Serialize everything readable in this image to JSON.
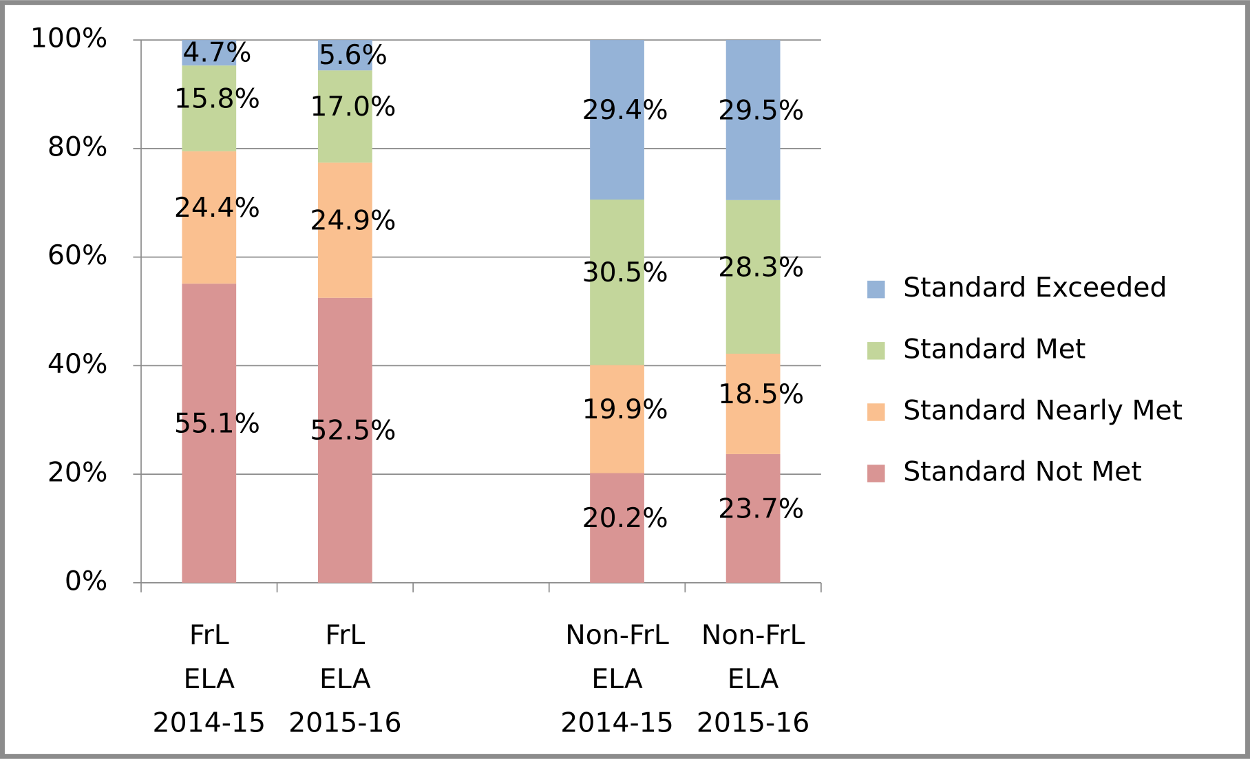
{
  "chart_data": {
    "type": "stacked_bar",
    "categories": [
      [
        "FrL",
        "ELA",
        "2014-15"
      ],
      [
        "FrL",
        "ELA",
        "2015-16"
      ],
      null,
      [
        "Non-FrL",
        "ELA",
        "2014-15"
      ],
      [
        "Non-FrL",
        "ELA",
        "2015-16"
      ]
    ],
    "series": [
      {
        "name": "Standard Not Met",
        "color": "#d99594",
        "values": [
          55.1,
          52.5,
          null,
          20.2,
          23.7
        ],
        "value_labels": [
          "55.1%",
          "52.5%",
          null,
          "20.2%",
          "23.7%"
        ]
      },
      {
        "name": "Standard Nearly Met",
        "color": "#fac090",
        "values": [
          24.4,
          24.9,
          null,
          19.9,
          18.5
        ],
        "value_labels": [
          "24.4%",
          "24.9%",
          null,
          "19.9%",
          "18.5%"
        ]
      },
      {
        "name": "Standard Met",
        "color": "#c3d69b",
        "values": [
          15.8,
          17.0,
          null,
          30.5,
          28.3
        ],
        "value_labels": [
          "15.8%",
          "17.0%",
          null,
          "30.5%",
          "28.3%"
        ]
      },
      {
        "name": "Standard Exceeded",
        "color": "#95b3d7",
        "values": [
          4.7,
          5.6,
          null,
          29.4,
          29.5
        ],
        "value_labels": [
          "4.7%",
          "5.6%",
          null,
          "29.4%",
          "29.5%"
        ]
      }
    ],
    "ylim": [
      0,
      100
    ],
    "yticks": [
      {
        "value": 0,
        "label": "0%"
      },
      {
        "value": 20,
        "label": "20%"
      },
      {
        "value": 40,
        "label": "40%"
      },
      {
        "value": 60,
        "label": "60%"
      },
      {
        "value": 80,
        "label": "80%"
      },
      {
        "value": 100,
        "label": "100%"
      }
    ],
    "grid": true,
    "legend": "right"
  }
}
